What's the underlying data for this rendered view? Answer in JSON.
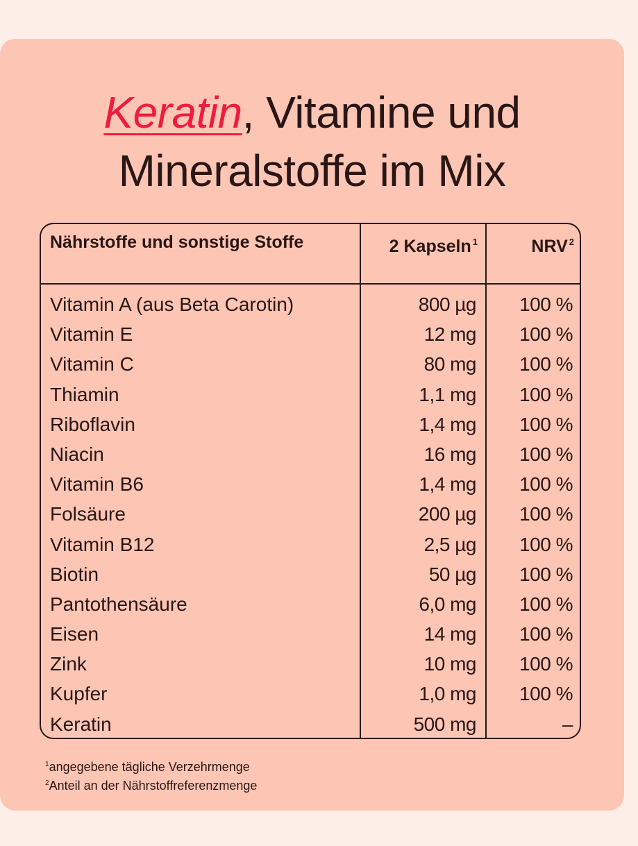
{
  "title": {
    "accent": "Keratin",
    "after_accent": ", Vitamine und",
    "line2": "Mineralstoffe im Mix"
  },
  "colors": {
    "accent": "#ee1c3f",
    "card": "#fdc6b4",
    "background": "#fdeee8",
    "text": "#2a1616"
  },
  "table": {
    "headers": {
      "nutrient": "Nährstoffe und sonstige Stoffe",
      "amount": "2 Kapseln",
      "amount_sup": "1",
      "nrv": "NRV",
      "nrv_sup": "2"
    },
    "rows": [
      {
        "name": "Vitamin A (aus Beta Carotin)",
        "amount": "800 µg",
        "nrv": "100 %"
      },
      {
        "name": "Vitamin E",
        "amount": "12 mg",
        "nrv": "100 %"
      },
      {
        "name": "Vitamin C",
        "amount": "80 mg",
        "nrv": "100 %"
      },
      {
        "name": "Thiamin",
        "amount": "1,1 mg",
        "nrv": "100 %"
      },
      {
        "name": "Riboflavin",
        "amount": "1,4 mg",
        "nrv": "100 %"
      },
      {
        "name": "Niacin",
        "amount": "16 mg",
        "nrv": "100 %"
      },
      {
        "name": "Vitamin B6",
        "amount": "1,4 mg",
        "nrv": "100 %"
      },
      {
        "name": "Folsäure",
        "amount": "200 µg",
        "nrv": "100 %"
      },
      {
        "name": "Vitamin B12",
        "amount": "2,5 µg",
        "nrv": "100 %"
      },
      {
        "name": "Biotin",
        "amount": "50 µg",
        "nrv": "100 %"
      },
      {
        "name": "Pantothensäure",
        "amount": "6,0 mg",
        "nrv": "100 %"
      },
      {
        "name": "Eisen",
        "amount": "14 mg",
        "nrv": "100 %"
      },
      {
        "name": "Zink",
        "amount": "10 mg",
        "nrv": "100 %"
      },
      {
        "name": "Kupfer",
        "amount": "1,0 mg",
        "nrv": "100 %"
      },
      {
        "name": "Keratin",
        "amount": "500 mg",
        "nrv": "–"
      }
    ]
  },
  "footnotes": [
    {
      "mark": "1",
      "text": "angegebene tägliche Verzehrmenge"
    },
    {
      "mark": "2",
      "text": "Anteil an der Nährstoffreferenzmenge"
    }
  ]
}
